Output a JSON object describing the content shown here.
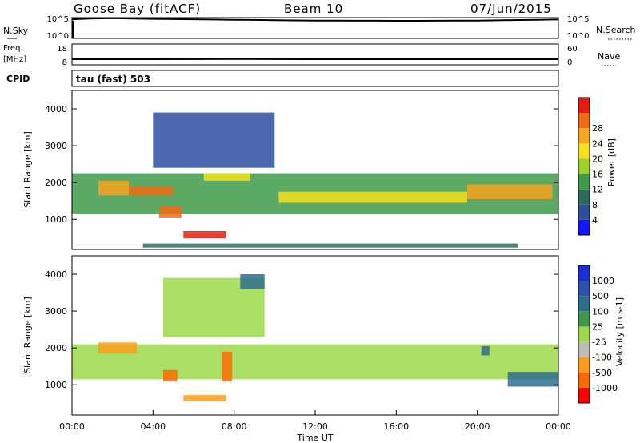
{
  "header": {
    "station_title": "Goose Bay (fitACF)",
    "beam_label": "Beam 10",
    "date_label": "07/Jun/2015"
  },
  "status_rows": {
    "nsky_label": "N.Sky",
    "nsky_ticks": [
      "10^5",
      "10^0"
    ],
    "nsearch_label": "N.Search",
    "nsearch_ticks": [
      "10^5",
      "10^0"
    ],
    "freq_label": "Freq.",
    "freq_unit": "[MHz]",
    "freq_ticks": [
      "18",
      "8"
    ],
    "nave_label": "Nave",
    "nave_ticks": [
      "60",
      "0"
    ],
    "cpid_label": "CPID",
    "cpid_value": "tau (fast) 503"
  },
  "time_axis": {
    "label": "Time UT",
    "ticks": [
      "00:00",
      "04:00",
      "08:00",
      "12:00",
      "16:00",
      "20:00",
      "00:00"
    ]
  },
  "colors": {
    "power_scale": [
      "#1414ff",
      "#2e4fa0",
      "#2f6b5a",
      "#3f9a4a",
      "#9fd02a",
      "#f4e21e",
      "#f6a51d",
      "#f26a12",
      "#e41c10"
    ],
    "velocity_scale": [
      "#ff0000",
      "#ff6a00",
      "#ff9d1a",
      "#bdbdb5",
      "#9bd84a",
      "#3e9a4a",
      "#2e6f8e",
      "#2c52b0",
      "#1a2fd8"
    ],
    "ground_scatter": "#bdbdb5"
  },
  "chart_data": [
    {
      "type": "line",
      "title": "N.Sky / N.Search",
      "x": [
        "00:00",
        "01:00",
        "02:00",
        "03:00",
        "04:00",
        "05:00",
        "06:00",
        "07:00",
        "08:00",
        "09:00",
        "10:00",
        "11:00",
        "12:00",
        "13:00",
        "14:00",
        "15:00",
        "16:00",
        "17:00",
        "18:00",
        "19:00",
        "20:00",
        "21:00",
        "22:00",
        "23:00",
        "24:00"
      ],
      "series": [
        {
          "name": "N.Sky",
          "values": [
            60000,
            95000,
            110000,
            90000,
            75000,
            65000,
            58000,
            52000,
            45000,
            40000,
            35000,
            30000,
            28000,
            26000,
            25000,
            25000,
            24000,
            24000,
            25000,
            26000,
            28000,
            32000,
            38000,
            45000,
            55000
          ]
        }
      ],
      "yscale": "log",
      "ylim": [
        1,
        100000
      ]
    },
    {
      "type": "line",
      "title": "Freq. / Nave",
      "x": [
        "00:00",
        "04:00",
        "08:00",
        "12:00",
        "16:00",
        "20:00",
        "24:00"
      ],
      "series": [
        {
          "name": "Freq.",
          "values": [
            10.5,
            10.5,
            10.6,
            10.5,
            10.5,
            10.5,
            10.5
          ]
        }
      ],
      "ylim": [
        8,
        18
      ]
    },
    {
      "type": "heatmap",
      "title": "Power",
      "ylabel": "Slant Range [km]",
      "xlabel": "Time UT",
      "ylim": [
        180,
        4500
      ],
      "y_ticks": [
        1000,
        2000,
        3000,
        4000
      ],
      "colorbar": {
        "label": "Power [dB]",
        "ticks": [
          4,
          8,
          12,
          16,
          20,
          24,
          28
        ],
        "range": [
          0,
          32
        ]
      },
      "regions": [
        {
          "t0": 0.0,
          "t1": 24.0,
          "r0": 1150,
          "r1": 2250,
          "value": 12
        },
        {
          "t0": 1.3,
          "t1": 2.8,
          "r0": 1650,
          "r1": 2050,
          "value": 22
        },
        {
          "t0": 2.8,
          "t1": 5.0,
          "r0": 1650,
          "r1": 1900,
          "value": 27
        },
        {
          "t0": 4.3,
          "t1": 5.4,
          "r0": 1050,
          "r1": 1350,
          "value": 28
        },
        {
          "t0": 5.5,
          "t1": 7.6,
          "r0": 480,
          "r1": 680,
          "value": 29
        },
        {
          "t0": 6.5,
          "t1": 8.8,
          "r0": 2050,
          "r1": 2250,
          "value": 18
        },
        {
          "t0": 10.2,
          "t1": 19.5,
          "r0": 1450,
          "r1": 1750,
          "value": 18
        },
        {
          "t0": 19.5,
          "t1": 23.7,
          "r0": 1550,
          "r1": 1950,
          "value": 24
        },
        {
          "t0": 4.0,
          "t1": 10.0,
          "r0": 2400,
          "r1": 3900,
          "value": 6
        },
        {
          "t0": 3.5,
          "t1": 22.0,
          "r0": 230,
          "r1": 340,
          "value": 10
        }
      ]
    },
    {
      "type": "heatmap",
      "title": "Velocity",
      "ylabel": "Slant Range [km]",
      "xlabel": "Time UT",
      "ylim": [
        180,
        4500
      ],
      "y_ticks": [
        1000,
        2000,
        3000,
        4000
      ],
      "colorbar": {
        "label": "Velocity [m s-1]",
        "ticks": [
          -1000,
          -500,
          -100,
          -25,
          25,
          100,
          500,
          1000
        ]
      },
      "regions": [
        {
          "t0": 0.0,
          "t1": 24.0,
          "r0": 1150,
          "r1": 2100,
          "value": 0
        },
        {
          "t0": 1.3,
          "t1": 3.2,
          "r0": 1850,
          "r1": 2150,
          "value": -300
        },
        {
          "t0": 4.5,
          "t1": 5.2,
          "r0": 1100,
          "r1": 1400,
          "value": -700
        },
        {
          "t0": 5.5,
          "t1": 7.6,
          "r0": 550,
          "r1": 720,
          "value": -300
        },
        {
          "t0": 7.4,
          "t1": 7.9,
          "r0": 1100,
          "r1": 1900,
          "value": -800
        },
        {
          "t0": 4.5,
          "t1": 9.5,
          "r0": 2300,
          "r1": 3900,
          "value": 0
        },
        {
          "t0": 8.3,
          "t1": 9.5,
          "r0": 3600,
          "r1": 4000,
          "value": 120
        },
        {
          "t0": 21.5,
          "t1": 24.0,
          "r0": 950,
          "r1": 1350,
          "value": 300
        },
        {
          "t0": 20.2,
          "t1": 20.6,
          "r0": 1800,
          "r1": 2050,
          "value": 400
        }
      ]
    }
  ]
}
